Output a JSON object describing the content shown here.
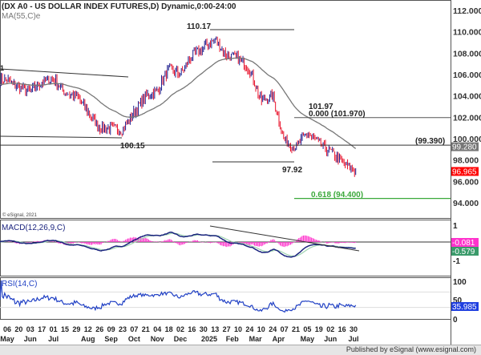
{
  "header": {
    "title": "(DX A0 - US DOLLAR INDEX FUTURES,D) Dynamic,0:00-24:00",
    "ma_label": "MA(55,C)e",
    "copyright": "© eSignal, 2021"
  },
  "footer": {
    "text": "Published by eSignal (www.esignal.com)"
  },
  "colors": {
    "up": "#1a1a8c",
    "down": "#e8102a",
    "ma": "#777777",
    "fib": "#3aa83a",
    "macd": "#1a237e",
    "signal": "#9fd3b0",
    "histogram": "#ff33cc",
    "rsi": "#1f3fc4"
  },
  "chart_data": [
    {
      "type": "line",
      "title": "(DX A0 - US DOLLAR INDEX FUTURES,D) Dynamic,0:00-24:00",
      "x_day_labels": [
        "06",
        "20",
        "03",
        "17",
        "01",
        "15",
        "29",
        "12",
        "26",
        "09",
        "23",
        "07",
        "21",
        "04",
        "18",
        "02",
        "16",
        "30",
        "13",
        "27",
        "10",
        "24",
        "10",
        "24",
        "07",
        "21",
        "05",
        "19",
        "02",
        "16",
        "30"
      ],
      "x_month_labels": [
        "May",
        "Jun",
        "Jul",
        "Aug",
        "Sep",
        "Oct",
        "Nov",
        "Dec",
        "2025",
        "Feb",
        "Mar",
        "Apr",
        "May",
        "Jun",
        "Jul"
      ],
      "close": [
        105.5,
        104.8,
        104.5,
        105.3,
        105.6,
        104.3,
        104.0,
        102.5,
        101.0,
        101.0,
        100.8,
        102.5,
        104.0,
        104.5,
        106.5,
        106.0,
        107.8,
        108.5,
        109.3,
        107.8,
        107.5,
        106.5,
        103.5,
        104.0,
        99.8,
        99.2,
        100.5,
        99.5,
        98.8,
        97.8,
        97.0
      ],
      "y_ticks": [
        "112.000",
        "110.000",
        "108.000",
        "106.000",
        "104.000",
        "102.000",
        "100.000",
        "98.000",
        "96.000",
        "94.000"
      ],
      "ylim": [
        93,
        113
      ],
      "last_price": "96.965",
      "ma_value": "99.280",
      "annotations": {
        "high": "110.17",
        "low1": "100.15",
        "low2": "97.92",
        "swing": "101.97",
        "fib0": "0.000 (101.970)",
        "fib618": "0.618 (94.400)",
        "level": "(99.390)",
        "left_mark": "1"
      },
      "series": [
        {
          "name": "MA(55,C)e"
        }
      ]
    },
    {
      "type": "line",
      "title": "MACD(12,26,9,C)",
      "y_ticks": [
        "1",
        "-1"
      ],
      "histogram_value": "-0.081",
      "signal_value": "-0.579"
    },
    {
      "type": "line",
      "title": "RSI(14,C)",
      "y_ticks": [
        "100",
        "50",
        "0"
      ],
      "value": "35.985"
    }
  ]
}
